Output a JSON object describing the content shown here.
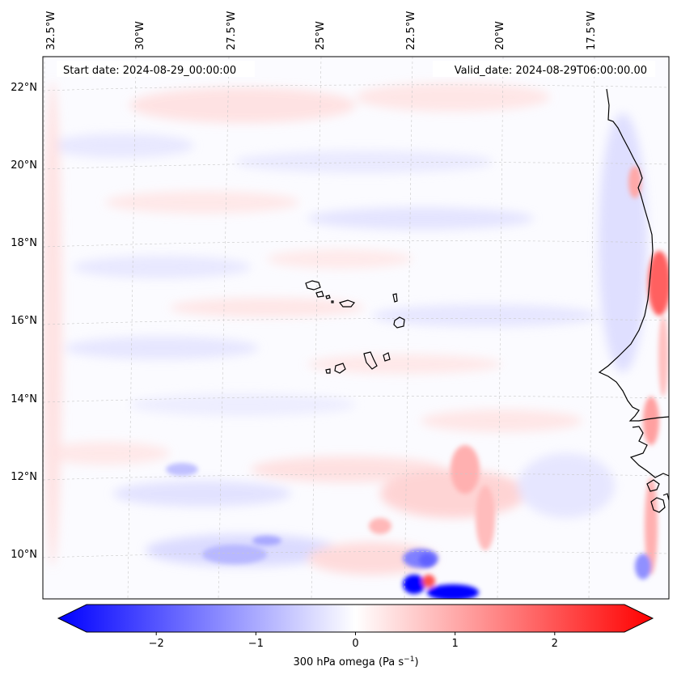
{
  "header": {
    "start_date": "Start date: 2024-08-29_00:00:00",
    "valid_date": "Valid_date: 2024-08-29T06:00:00.00"
  },
  "longitude_labels": [
    "32.5°W",
    "30°W",
    "27.5°W",
    "25°W",
    "22.5°W",
    "20°W",
    "17.5°W"
  ],
  "latitude_labels": [
    "22°N",
    "20°N",
    "18°N",
    "16°N",
    "14°N",
    "12°N",
    "10°N"
  ],
  "colorbar": {
    "label_prefix": "300 hPa omega (Pa s",
    "label_exp": "−1",
    "label_suffix": ")",
    "ticks": [
      "−2",
      "−1",
      "0",
      "1",
      "2"
    ],
    "min": -2.7,
    "max": 2.7,
    "colormap": "bwr",
    "color_low": "#0000ff",
    "color_mid": "#ffffff",
    "color_high": "#ff0000"
  }
}
